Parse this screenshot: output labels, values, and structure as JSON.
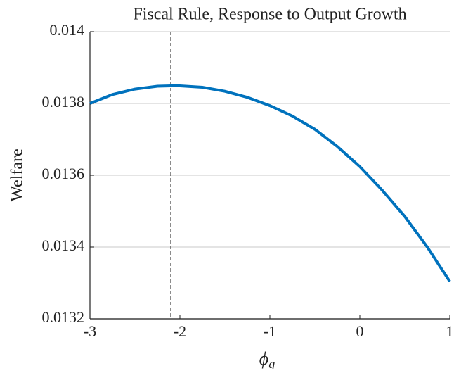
{
  "chart_data": {
    "type": "line",
    "title": "Fiscal Rule, Response to Output Growth",
    "xlabel": "ϕ",
    "xlabel_subscript": "g",
    "ylabel": "Welfare",
    "x": [
      -3,
      -2.75,
      -2.5,
      -2.25,
      -2.1,
      -2,
      -1.75,
      -1.5,
      -1.25,
      -1,
      -0.75,
      -0.5,
      -0.25,
      0,
      0.25,
      0.5,
      0.75,
      1
    ],
    "series": [
      {
        "color": "#0072bd",
        "values": [
          0.0138,
          0.013825,
          0.01384,
          0.013848,
          0.013849,
          0.013849,
          0.013845,
          0.013834,
          0.013817,
          0.013794,
          0.013765,
          0.013728,
          0.01368,
          0.013624,
          0.013558,
          0.013485,
          0.0134,
          0.013304
        ]
      }
    ],
    "vline_x": -2.1,
    "vline_color": "#000000",
    "xlim": [
      -3,
      1
    ],
    "xticks": [
      -3,
      -2,
      -1,
      0,
      1
    ],
    "ylim": [
      0.0132,
      0.014
    ],
    "yticks": [
      0.0132,
      0.0134,
      0.0136,
      0.0138,
      0.014
    ],
    "grid": true
  }
}
